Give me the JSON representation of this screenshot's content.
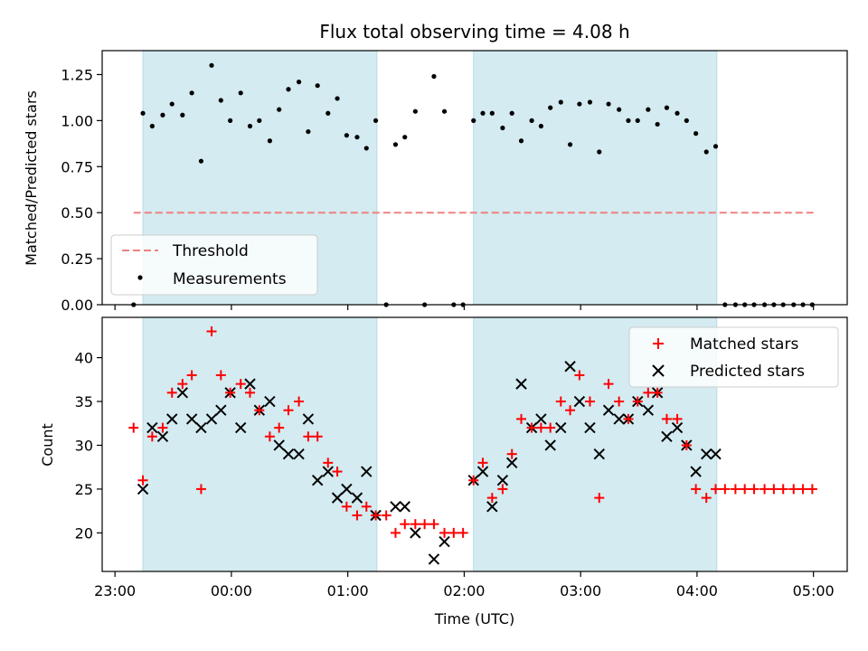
{
  "chart_data": {
    "type": "scatter",
    "title": "Flux total observing time = 4.08 h",
    "xlabel": "Time (UTC)",
    "x_ticks": [
      "23:00",
      "00:00",
      "01:00",
      "02:00",
      "03:00",
      "04:00",
      "05:00"
    ],
    "x_tick_hours": [
      -1,
      0,
      1,
      2,
      3,
      4,
      5
    ],
    "xlim_hours": [
      -1.11,
      5.29
    ],
    "shaded_intervals_hours": [
      [
        -0.76,
        1.25
      ],
      [
        2.08,
        4.17
      ]
    ],
    "shade_color": "#d3ebf1",
    "top": {
      "ylabel": "Matched/Predicted stars",
      "ylim": [
        0,
        1.38
      ],
      "y_ticks": [
        "0.00",
        "0.25",
        "0.50",
        "0.75",
        "1.00",
        "1.25"
      ],
      "y_tick_values": [
        0,
        0.25,
        0.5,
        0.75,
        1.0,
        1.25
      ],
      "threshold": {
        "name": "Threshold",
        "value": 0.5,
        "x_range_hours": [
          -0.84,
          5.0
        ],
        "color": "#f08080"
      },
      "measurements": {
        "name": "Measurements",
        "color": "#000000",
        "x": [
          -0.84,
          -0.76,
          -0.68,
          -0.59,
          -0.51,
          -0.42,
          -0.34,
          -0.26,
          -0.17,
          -0.09,
          -0.01,
          0.08,
          0.16,
          0.24,
          0.33,
          0.41,
          0.49,
          0.58,
          0.66,
          0.74,
          0.83,
          0.91,
          0.99,
          1.08,
          1.16,
          1.24,
          1.33,
          1.41,
          1.49,
          1.58,
          1.66,
          1.74,
          1.83,
          1.91,
          1.99,
          2.08,
          2.16,
          2.24,
          2.33,
          2.41,
          2.49,
          2.58,
          2.66,
          2.74,
          2.83,
          2.91,
          2.99,
          3.08,
          3.16,
          3.24,
          3.33,
          3.41,
          3.49,
          3.58,
          3.66,
          3.74,
          3.83,
          3.91,
          3.99,
          4.08,
          4.16,
          4.24,
          4.33,
          4.41,
          4.49,
          4.58,
          4.66,
          4.74,
          4.83,
          4.91,
          4.99
        ],
        "y": [
          0.0,
          1.04,
          0.97,
          1.03,
          1.09,
          1.03,
          1.15,
          0.78,
          1.3,
          1.11,
          1.0,
          1.15,
          0.97,
          1.0,
          0.89,
          1.06,
          1.17,
          1.21,
          0.94,
          1.19,
          1.04,
          1.12,
          0.92,
          0.91,
          0.85,
          1.0,
          0.0,
          0.87,
          0.91,
          1.05,
          0.0,
          1.24,
          1.05,
          0.0,
          0.0,
          1.0,
          1.04,
          1.04,
          0.96,
          1.04,
          0.89,
          1.0,
          0.97,
          1.07,
          1.1,
          0.87,
          1.09,
          1.1,
          0.83,
          1.09,
          1.06,
          1.0,
          1.0,
          1.06,
          0.98,
          1.07,
          1.04,
          1.0,
          0.93,
          0.83,
          0.86,
          0.0,
          0.0,
          0.0,
          0.0,
          0.0,
          0.0,
          0.0,
          0.0,
          0.0,
          0.0
        ]
      }
    },
    "bottom": {
      "ylabel": "Count",
      "ylim": [
        15.6,
        44.6
      ],
      "y_ticks": [
        "20",
        "25",
        "30",
        "35",
        "40"
      ],
      "y_tick_values": [
        20,
        25,
        30,
        35,
        40
      ],
      "matched": {
        "name": "Matched stars",
        "color": "#ff0000",
        "x": [
          -0.84,
          -0.76,
          -0.68,
          -0.59,
          -0.51,
          -0.42,
          -0.34,
          -0.26,
          -0.17,
          -0.09,
          -0.01,
          0.08,
          0.16,
          0.24,
          0.33,
          0.41,
          0.49,
          0.58,
          0.66,
          0.74,
          0.83,
          0.91,
          0.99,
          1.08,
          1.16,
          1.24,
          1.33,
          1.41,
          1.49,
          1.58,
          1.66,
          1.74,
          1.83,
          1.91,
          1.99,
          2.08,
          2.16,
          2.24,
          2.33,
          2.41,
          2.49,
          2.58,
          2.66,
          2.74,
          2.83,
          2.91,
          2.99,
          3.08,
          3.16,
          3.24,
          3.33,
          3.41,
          3.49,
          3.58,
          3.66,
          3.74,
          3.83,
          3.91,
          3.99,
          4.08,
          4.16,
          4.24,
          4.33,
          4.41,
          4.49,
          4.58,
          4.66,
          4.74,
          4.83,
          4.91,
          4.99
        ],
        "y": [
          32,
          26,
          31,
          32,
          36,
          37,
          38,
          25,
          43,
          38,
          36,
          37,
          36,
          34,
          31,
          32,
          34,
          35,
          31,
          31,
          28,
          27,
          23,
          22,
          23,
          22,
          22,
          20,
          21,
          21,
          21,
          21,
          20,
          20,
          20,
          26,
          28,
          24,
          25,
          29,
          33,
          32,
          32,
          32,
          35,
          34,
          38,
          35,
          24,
          37,
          35,
          33,
          35,
          36,
          36,
          33,
          33,
          30,
          25,
          24,
          25,
          25,
          25,
          25,
          25,
          25,
          25,
          25,
          25,
          25,
          25
        ]
      },
      "predicted": {
        "name": "Predicted stars",
        "color": "#000000",
        "x": [
          -0.76,
          -0.68,
          -0.59,
          -0.51,
          -0.42,
          -0.34,
          -0.26,
          -0.17,
          -0.09,
          -0.01,
          0.08,
          0.16,
          0.24,
          0.33,
          0.41,
          0.49,
          0.58,
          0.66,
          0.74,
          0.83,
          0.91,
          0.99,
          1.08,
          1.16,
          1.24,
          1.41,
          1.49,
          1.58,
          1.74,
          1.83,
          2.08,
          2.16,
          2.24,
          2.33,
          2.41,
          2.49,
          2.58,
          2.66,
          2.74,
          2.83,
          2.91,
          2.99,
          3.08,
          3.16,
          3.24,
          3.33,
          3.41,
          3.49,
          3.58,
          3.66,
          3.74,
          3.83,
          3.91,
          3.99,
          4.08,
          4.16
        ],
        "y": [
          25,
          32,
          31,
          33,
          36,
          33,
          32,
          33,
          34,
          36,
          32,
          37,
          34,
          35,
          30,
          29,
          29,
          33,
          26,
          27,
          24,
          25,
          24,
          27,
          22,
          23,
          23,
          20,
          17,
          19,
          26,
          27,
          23,
          26,
          28,
          37,
          32,
          33,
          30,
          32,
          39,
          35,
          32,
          29,
          34,
          33,
          33,
          35,
          34,
          36,
          31,
          32,
          30,
          27,
          29,
          29
        ]
      }
    }
  }
}
